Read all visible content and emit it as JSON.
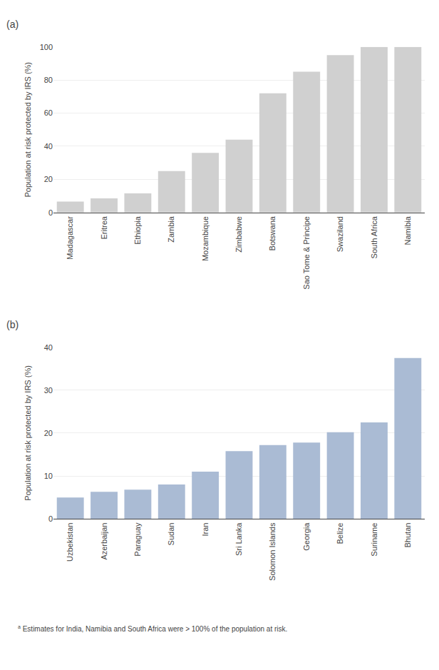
{
  "chart_data": [
    {
      "type": "bar",
      "title": "(a)",
      "categories": [
        "Madagascar",
        "Eritrea",
        "Ethiopia",
        "Zambia",
        "Mozambique",
        "Zimbabwe",
        "Botswana",
        "Sao Tome & Principe",
        "Swaziland",
        "South Africa",
        "Namibia"
      ],
      "values": [
        6.5,
        8.5,
        11.5,
        25,
        36,
        44,
        72,
        85,
        95,
        100,
        100
      ],
      "color": "#d0d0d0",
      "ylabel": "Population at risk protected by IRS (%)",
      "ylim": [
        0,
        100
      ],
      "yticks": [
        0,
        20,
        40,
        60,
        80,
        100
      ],
      "grid": true
    },
    {
      "type": "bar",
      "title": "(b)",
      "categories": [
        "Uzbekistan",
        "Azerbaijan",
        "Paraguay",
        "Sudan",
        "Iran",
        "Sri Lanka",
        "Solomon Islands",
        "Georgia",
        "Belize",
        "Suriname",
        "Bhutan"
      ],
      "values": [
        5.0,
        6.3,
        6.8,
        8.0,
        11.0,
        15.8,
        17.2,
        17.8,
        20.2,
        22.5,
        37.5
      ],
      "color": "#aabbd4",
      "ylabel": "Population at risk protected by IRS (%)",
      "ylim": [
        0,
        40
      ],
      "yticks": [
        0,
        10,
        20,
        30,
        40
      ],
      "grid": true,
      "annotations": [
        "a",
        "Estimates for India, Namibia and South Africa were > 100% of the population at risk."
      ]
    }
  ]
}
